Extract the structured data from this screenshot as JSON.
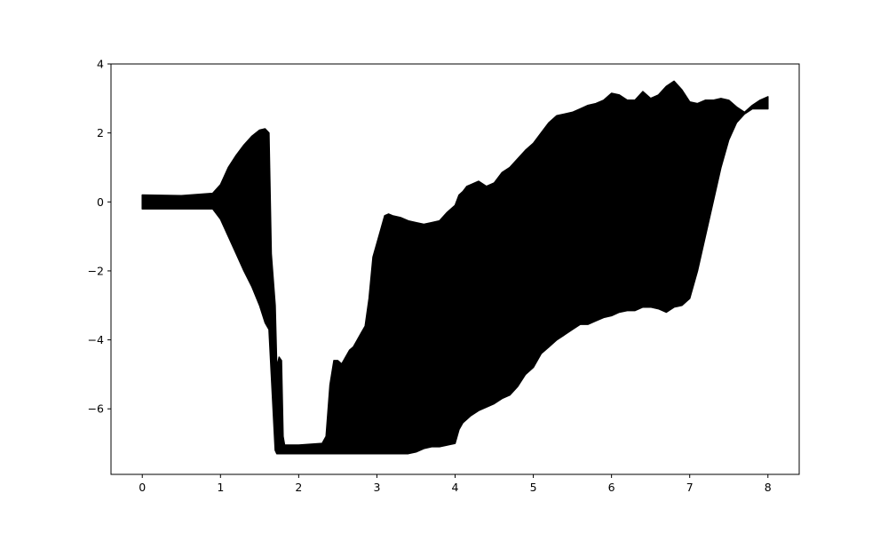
{
  "colors": {
    "background": "#ffffff",
    "series": "#000000",
    "axes": "#000000"
  },
  "chart_data": {
    "type": "area",
    "title": "",
    "xlabel": "",
    "ylabel": "",
    "xlim": [
      -0.4,
      8.4
    ],
    "ylim": [
      -7.9,
      4
    ],
    "grid": false,
    "legend": "none",
    "x_ticks": [
      0,
      1,
      2,
      3,
      4,
      5,
      6,
      7,
      8
    ],
    "x_tick_labels": [
      "0",
      "1",
      "2",
      "3",
      "4",
      "5",
      "6",
      "7",
      "8"
    ],
    "y_ticks": [
      -6,
      -4,
      -2,
      0,
      2,
      4
    ],
    "y_tick_labels": [
      "−6",
      "−4",
      "−2",
      "0",
      "2",
      "4"
    ],
    "series": [
      {
        "description": "dense oscillating signal envelope (upper and lower bounds)",
        "x": [
          0.0,
          0.5,
          0.9,
          1.0,
          1.1,
          1.2,
          1.3,
          1.4,
          1.5,
          1.57,
          1.62,
          1.65,
          1.7,
          1.72,
          1.75,
          1.78,
          1.8,
          1.82,
          1.85,
          2.0,
          2.3,
          2.35,
          2.4,
          2.45,
          2.5,
          2.55,
          2.6,
          2.65,
          2.7,
          2.75,
          2.8,
          2.85,
          2.9,
          2.95,
          3.0,
          3.05,
          3.1,
          3.15,
          3.2,
          3.3,
          3.4,
          3.5,
          3.6,
          3.7,
          3.8,
          3.9,
          4.0,
          4.05,
          4.1,
          4.15,
          4.2,
          4.3,
          4.4,
          4.5,
          4.6,
          4.7,
          4.8,
          4.9,
          5.0,
          5.1,
          5.2,
          5.3,
          5.4,
          5.5,
          5.6,
          5.7,
          5.8,
          5.9,
          6.0,
          6.1,
          6.2,
          6.3,
          6.4,
          6.5,
          6.6,
          6.7,
          6.8,
          6.9,
          7.0,
          7.1,
          7.2,
          7.3,
          7.4,
          7.5,
          7.6,
          7.7,
          7.8,
          7.9,
          8.0
        ],
        "upper": [
          0.2,
          0.18,
          0.25,
          0.5,
          1.0,
          1.35,
          1.65,
          1.9,
          2.08,
          2.12,
          2.0,
          -1.5,
          -3.0,
          -4.8,
          -4.5,
          -4.6,
          -6.8,
          -7.05,
          -7.05,
          -7.05,
          -7.0,
          -6.8,
          -5.3,
          -4.6,
          -4.6,
          -4.7,
          -4.5,
          -4.3,
          -4.2,
          -4.0,
          -3.8,
          -3.6,
          -2.8,
          -1.6,
          -1.2,
          -0.8,
          -0.4,
          -0.35,
          -0.4,
          -0.45,
          -0.55,
          -0.6,
          -0.65,
          -0.6,
          -0.55,
          -0.3,
          -0.1,
          0.2,
          0.3,
          0.45,
          0.5,
          0.6,
          0.45,
          0.55,
          0.85,
          1.0,
          1.25,
          1.5,
          1.7,
          2.0,
          2.3,
          2.5,
          2.55,
          2.6,
          2.7,
          2.8,
          2.85,
          2.95,
          3.15,
          3.1,
          2.95,
          2.95,
          3.2,
          3.0,
          3.1,
          3.35,
          3.5,
          3.25,
          2.9,
          2.85,
          2.95,
          2.95,
          3.0,
          2.95,
          2.75,
          2.6,
          2.8,
          2.95,
          3.05
        ],
        "lower": [
          -0.2,
          -0.2,
          -0.2,
          -0.5,
          -1.0,
          -1.5,
          -2.0,
          -2.45,
          -3.0,
          -3.5,
          -3.7,
          -5.0,
          -7.2,
          -7.3,
          -7.3,
          -7.3,
          -7.3,
          -7.3,
          -7.3,
          -7.3,
          -7.3,
          -7.3,
          -7.3,
          -7.3,
          -7.3,
          -7.3,
          -7.3,
          -7.3,
          -7.3,
          -7.3,
          -7.3,
          -7.3,
          -7.3,
          -7.3,
          -7.3,
          -7.3,
          -7.3,
          -7.3,
          -7.3,
          -7.3,
          -7.3,
          -7.25,
          -7.15,
          -7.1,
          -7.1,
          -7.05,
          -7.0,
          -6.6,
          -6.4,
          -6.3,
          -6.2,
          -6.05,
          -5.95,
          -5.85,
          -5.7,
          -5.6,
          -5.35,
          -5.0,
          -4.8,
          -4.4,
          -4.2,
          -4.0,
          -3.85,
          -3.7,
          -3.55,
          -3.55,
          -3.45,
          -3.35,
          -3.3,
          -3.2,
          -3.15,
          -3.15,
          -3.05,
          -3.05,
          -3.1,
          -3.2,
          -3.05,
          -3.0,
          -2.8,
          -2.0,
          -1.0,
          0.0,
          1.0,
          1.8,
          2.3,
          2.55,
          2.7,
          2.7,
          2.7
        ]
      }
    ]
  }
}
